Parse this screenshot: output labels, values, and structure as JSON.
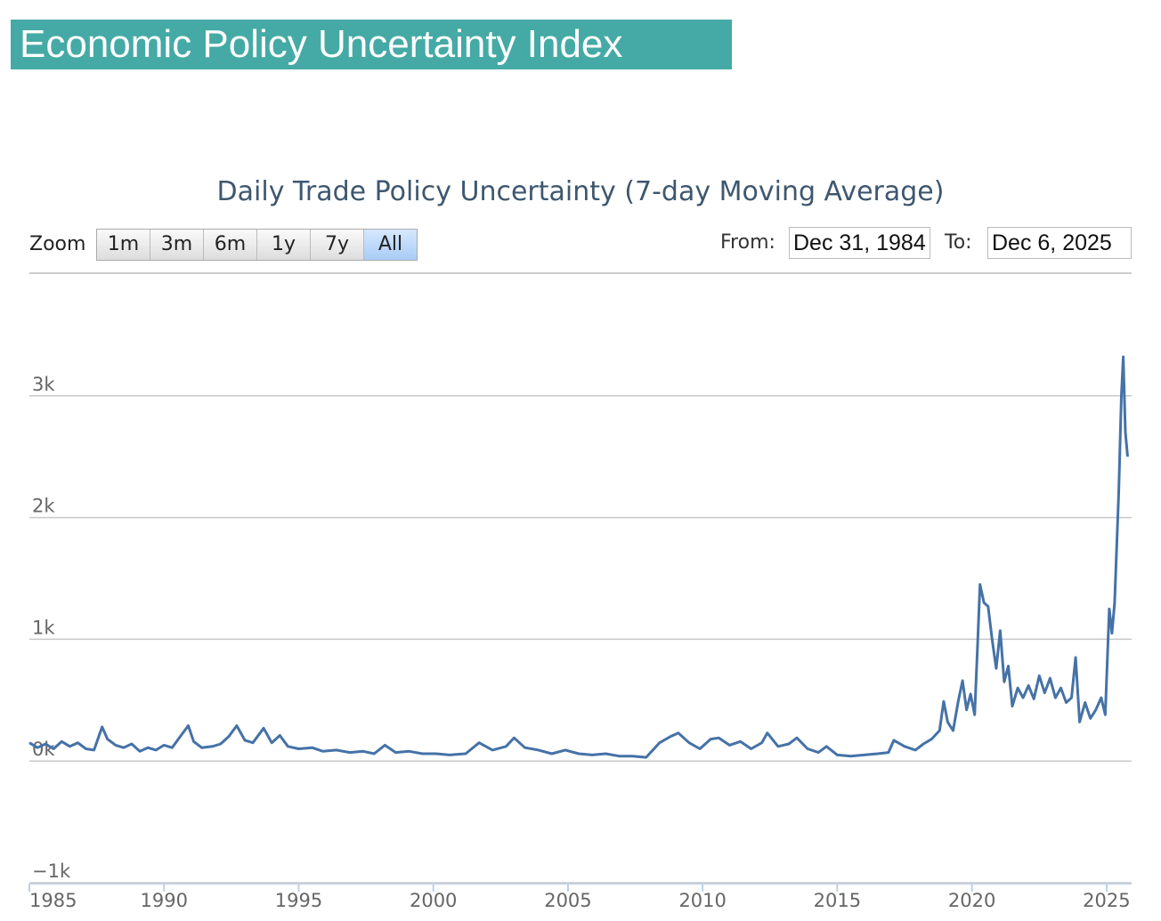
{
  "header": {
    "title": "Economic Policy Uncertainty Index"
  },
  "controls": {
    "zoom_label": "Zoom",
    "buttons": [
      "1m",
      "3m",
      "6m",
      "1y",
      "7y",
      "All"
    ],
    "from_label": "From:",
    "from": "Dec 31, 1984",
    "to_label": "To:",
    "to": "Dec 6, 2025"
  },
  "chart_data": {
    "type": "line",
    "title": "Daily Trade Policy Uncertainty (7-day Moving Average)",
    "x": [
      1985,
      1985.3,
      1985.6,
      1985.9,
      1986.2,
      1986.5,
      1986.8,
      1987.1,
      1987.4,
      1987.7,
      1987.9,
      1988.2,
      1988.5,
      1988.8,
      1989.1,
      1989.4,
      1989.7,
      1990,
      1990.3,
      1990.6,
      1990.9,
      1991.1,
      1991.4,
      1991.8,
      1992.1,
      1992.4,
      1992.7,
      1993,
      1993.3,
      1993.7,
      1994,
      1994.3,
      1994.6,
      1995,
      1995.5,
      1995.9,
      1996.4,
      1996.9,
      1997.4,
      1997.8,
      1998.2,
      1998.6,
      1999.1,
      1999.6,
      2000.1,
      2000.6,
      2001.2,
      2001.7,
      2002.2,
      2002.7,
      2003,
      2003.4,
      2003.9,
      2004.4,
      2004.9,
      2005.4,
      2005.9,
      2006.4,
      2006.9,
      2007.4,
      2007.9,
      2008.4,
      2008.8,
      2009.1,
      2009.5,
      2009.9,
      2010.3,
      2010.6,
      2011,
      2011.4,
      2011.8,
      2012.2,
      2012.4,
      2012.8,
      2013.2,
      2013.5,
      2013.9,
      2014.3,
      2014.6,
      2015,
      2015.5,
      2016,
      2016.5,
      2016.9,
      2017.1,
      2017.5,
      2017.9,
      2018.2,
      2018.5,
      2018.8,
      2018.95,
      2019.1,
      2019.3,
      2019.5,
      2019.65,
      2019.8,
      2019.95,
      2020.1,
      2020.2,
      2020.3,
      2020.45,
      2020.6,
      2020.75,
      2020.9,
      2021.05,
      2021.2,
      2021.35,
      2021.5,
      2021.7,
      2021.9,
      2022.1,
      2022.3,
      2022.5,
      2022.7,
      2022.9,
      2023.1,
      2023.3,
      2023.5,
      2023.7,
      2023.85,
      2024,
      2024.2,
      2024.4,
      2024.6,
      2024.8,
      2024.95,
      2025.1,
      2025.2,
      2025.3,
      2025.45,
      2025.55,
      2025.62,
      2025.7,
      2025.78
    ],
    "values": [
      150,
      110,
      140,
      100,
      160,
      120,
      150,
      100,
      90,
      280,
      180,
      130,
      110,
      140,
      80,
      110,
      90,
      130,
      110,
      200,
      290,
      160,
      110,
      120,
      140,
      200,
      290,
      170,
      150,
      270,
      150,
      210,
      120,
      100,
      110,
      80,
      90,
      70,
      80,
      60,
      130,
      70,
      80,
      60,
      60,
      50,
      60,
      150,
      90,
      120,
      190,
      110,
      90,
      60,
      90,
      60,
      50,
      60,
      40,
      40,
      30,
      150,
      200,
      230,
      150,
      100,
      180,
      190,
      130,
      160,
      100,
      150,
      230,
      120,
      140,
      190,
      100,
      70,
      120,
      50,
      40,
      50,
      60,
      70,
      170,
      120,
      90,
      140,
      180,
      250,
      490,
      320,
      250,
      500,
      660,
      420,
      550,
      380,
      900,
      1450,
      1300,
      1270,
      1000,
      760,
      1070,
      650,
      780,
      450,
      600,
      520,
      620,
      510,
      700,
      560,
      680,
      520,
      600,
      480,
      520,
      850,
      320,
      480,
      350,
      420,
      520,
      380,
      1250,
      1050,
      1300,
      2200,
      3000,
      3320,
      2700,
      2500
    ],
    "color": "#4572a7",
    "xlim": [
      1985,
      2025.93
    ],
    "xticks": [
      1985,
      1990,
      1995,
      2000,
      2005,
      2010,
      2015,
      2020,
      2025
    ],
    "ylim": [
      -1000,
      4000
    ],
    "yticks": [
      {
        "value": -1000,
        "label": "−1k"
      },
      {
        "value": 0,
        "label": "0k"
      },
      {
        "value": 1000,
        "label": "1k"
      },
      {
        "value": 2000,
        "label": "2k"
      },
      {
        "value": 3000,
        "label": "3k"
      }
    ],
    "grid": true
  }
}
